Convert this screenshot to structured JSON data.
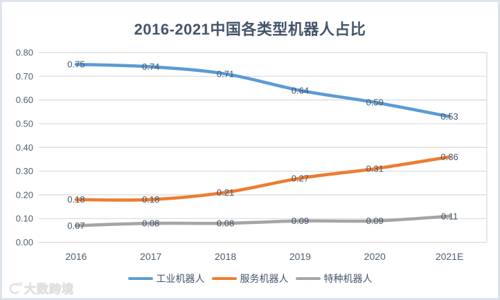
{
  "watermark": {
    "text": "大数跨境",
    "icon": "brand-logo-icon"
  },
  "chart_data": {
    "type": "line",
    "title": "2016-2021中国各类型机器人占比",
    "categories": [
      "2016",
      "2017",
      "2018",
      "2019",
      "2020",
      "2021E"
    ],
    "series": [
      {
        "name": "工业机器人",
        "color": "#5B9BD5",
        "values": [
          0.75,
          0.74,
          0.71,
          0.64,
          0.59,
          0.53
        ]
      },
      {
        "name": "服务机器人",
        "color": "#ED7D31",
        "values": [
          0.18,
          0.18,
          0.21,
          0.27,
          0.31,
          0.36
        ]
      },
      {
        "name": "特种机器人",
        "color": "#A5A5A5",
        "values": [
          0.07,
          0.08,
          0.08,
          0.09,
          0.09,
          0.11
        ]
      }
    ],
    "ylim": [
      0,
      0.8
    ],
    "ytick_step": 0.1,
    "yticks": [
      "0.00",
      "0.10",
      "0.20",
      "0.30",
      "0.40",
      "0.50",
      "0.60",
      "0.70",
      "0.80"
    ],
    "grid": true,
    "smoothed": true,
    "data_labels": true,
    "legend_position": "bottom",
    "gridline_color": "#D9D9D9",
    "axis_text_color": "#4E5D70",
    "data_label_color": "#44546A",
    "xlabel": "",
    "ylabel": ""
  }
}
